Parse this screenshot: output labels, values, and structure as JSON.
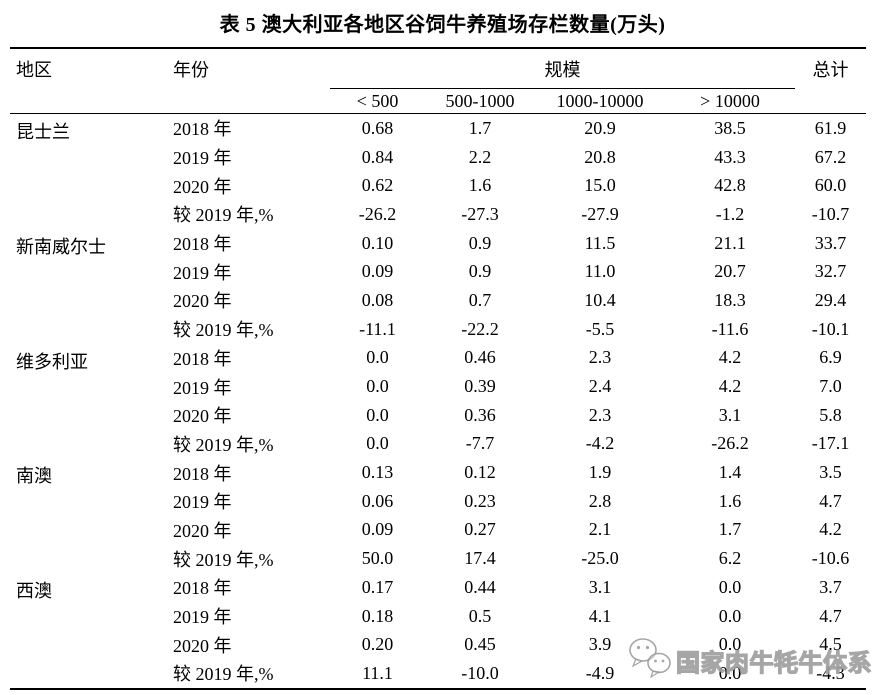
{
  "title": "表 5 澳大利亚各地区谷饲牛养殖场存栏数量(万头)",
  "colors": {
    "text": "#000000",
    "border": "#000000",
    "watermark": "#9a9a9a",
    "background": "#ffffff"
  },
  "table": {
    "col_region": "地区",
    "col_year": "年份",
    "col_scale": "规模",
    "col_total": "总计",
    "scale_cols": [
      "< 500",
      "500-1000",
      "1000-10000",
      "> 10000"
    ],
    "regions": [
      {
        "name": "昆士兰",
        "rows": [
          {
            "year": "2018 年",
            "values": [
              "0.68",
              "1.7",
              "20.9",
              "38.5",
              "61.9"
            ]
          },
          {
            "year": "2019 年",
            "values": [
              "0.84",
              "2.2",
              "20.8",
              "43.3",
              "67.2"
            ]
          },
          {
            "year": "2020 年",
            "values": [
              "0.62",
              "1.6",
              "15.0",
              "42.8",
              "60.0"
            ]
          },
          {
            "year": "较 2019 年,%",
            "values": [
              "-26.2",
              "-27.3",
              "-27.9",
              "-1.2",
              "-10.7"
            ]
          }
        ]
      },
      {
        "name": "新南威尔士",
        "rows": [
          {
            "year": "2018 年",
            "values": [
              "0.10",
              "0.9",
              "11.5",
              "21.1",
              "33.7"
            ]
          },
          {
            "year": "2019 年",
            "values": [
              "0.09",
              "0.9",
              "11.0",
              "20.7",
              "32.7"
            ]
          },
          {
            "year": "2020 年",
            "values": [
              "0.08",
              "0.7",
              "10.4",
              "18.3",
              "29.4"
            ]
          },
          {
            "year": "较 2019 年,%",
            "values": [
              "-11.1",
              "-22.2",
              "-5.5",
              "-11.6",
              "-10.1"
            ]
          }
        ]
      },
      {
        "name": "维多利亚",
        "rows": [
          {
            "year": "2018 年",
            "values": [
              "0.0",
              "0.46",
              "2.3",
              "4.2",
              "6.9"
            ]
          },
          {
            "year": "2019 年",
            "values": [
              "0.0",
              "0.39",
              "2.4",
              "4.2",
              "7.0"
            ]
          },
          {
            "year": "2020 年",
            "values": [
              "0.0",
              "0.36",
              "2.3",
              "3.1",
              "5.8"
            ]
          },
          {
            "year": "较 2019 年,%",
            "values": [
              "0.0",
              "-7.7",
              "-4.2",
              "-26.2",
              "-17.1"
            ]
          }
        ]
      },
      {
        "name": "南澳",
        "rows": [
          {
            "year": "2018 年",
            "values": [
              "0.13",
              "0.12",
              "1.9",
              "1.4",
              "3.5"
            ]
          },
          {
            "year": "2019 年",
            "values": [
              "0.06",
              "0.23",
              "2.8",
              "1.6",
              "4.7"
            ]
          },
          {
            "year": "2020 年",
            "values": [
              "0.09",
              "0.27",
              "2.1",
              "1.7",
              "4.2"
            ]
          },
          {
            "year": "较 2019 年,%",
            "values": [
              "50.0",
              "17.4",
              "-25.0",
              "6.2",
              "-10.6"
            ]
          }
        ]
      },
      {
        "name": "西澳",
        "rows": [
          {
            "year": "2018 年",
            "values": [
              "0.17",
              "0.44",
              "3.1",
              "0.0",
              "3.7"
            ]
          },
          {
            "year": "2019 年",
            "values": [
              "0.18",
              "0.5",
              "4.1",
              "0.0",
              "4.7"
            ]
          },
          {
            "year": "2020 年",
            "values": [
              "0.20",
              "0.45",
              "3.9",
              "0.0",
              "4.5"
            ]
          },
          {
            "year": "较 2019 年,%",
            "values": [
              "11.1",
              "-10.0",
              "-4.9",
              "0.0",
              "-4.3"
            ]
          }
        ]
      }
    ]
  },
  "watermark": {
    "icon": "wechat-icon",
    "text": "国家肉牛牦牛体系"
  }
}
